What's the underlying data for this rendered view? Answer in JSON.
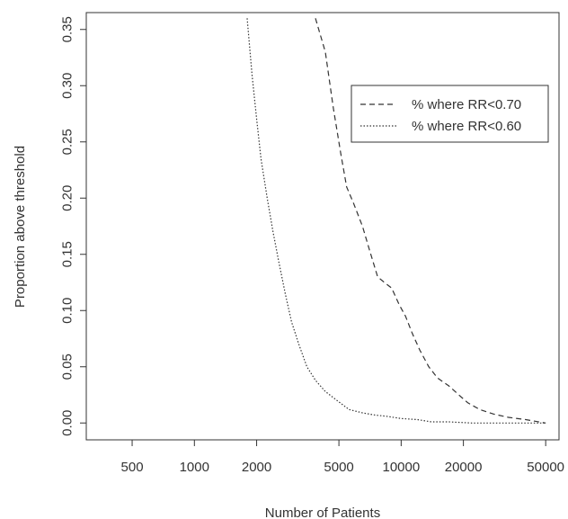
{
  "chart_data": {
    "type": "line",
    "title": "",
    "xlabel": "Number of Patients",
    "ylabel": "Proportion above threshold",
    "xscale": "log",
    "xlim": [
      300,
      58000
    ],
    "ylim": [
      -0.015,
      0.365
    ],
    "grid": false,
    "legend_position": "top-right",
    "x_ticks": [
      {
        "value": 500,
        "label": "500"
      },
      {
        "value": 1000,
        "label": "1000"
      },
      {
        "value": 2000,
        "label": "2000"
      },
      {
        "value": 5000,
        "label": "5000"
      },
      {
        "value": 10000,
        "label": "10000"
      },
      {
        "value": 20000,
        "label": "20000"
      },
      {
        "value": 50000,
        "label": "50000"
      }
    ],
    "y_ticks": [
      {
        "value": 0.0,
        "label": "0.00"
      },
      {
        "value": 0.05,
        "label": "0.05"
      },
      {
        "value": 0.1,
        "label": "0.10"
      },
      {
        "value": 0.15,
        "label": "0.15"
      },
      {
        "value": 0.2,
        "label": "0.20"
      },
      {
        "value": 0.25,
        "label": "0.25"
      },
      {
        "value": 0.3,
        "label": "0.30"
      },
      {
        "value": 0.35,
        "label": "0.35"
      }
    ],
    "series": [
      {
        "name": "% where RR<0.70",
        "dash": "dashed",
        "color": "#333333",
        "points": [
          [
            3850,
            0.36
          ],
          [
            4300,
            0.33
          ],
          [
            4700,
            0.28
          ],
          [
            5100,
            0.24
          ],
          [
            5450,
            0.21
          ],
          [
            5900,
            0.195
          ],
          [
            6500,
            0.175
          ],
          [
            7000,
            0.155
          ],
          [
            7700,
            0.13
          ],
          [
            8300,
            0.125
          ],
          [
            9000,
            0.12
          ],
          [
            9800,
            0.105
          ],
          [
            10500,
            0.095
          ],
          [
            11300,
            0.08
          ],
          [
            12300,
            0.065
          ],
          [
            13600,
            0.05
          ],
          [
            15000,
            0.04
          ],
          [
            17000,
            0.033
          ],
          [
            19000,
            0.025
          ],
          [
            21000,
            0.018
          ],
          [
            24000,
            0.012
          ],
          [
            28000,
            0.008
          ],
          [
            33000,
            0.005
          ],
          [
            40000,
            0.003
          ],
          [
            50000,
            0.0
          ]
        ]
      },
      {
        "name": "% where RR<0.60",
        "dash": "dotted",
        "color": "#333333",
        "points": [
          [
            1800,
            0.36
          ],
          [
            1900,
            0.31
          ],
          [
            2000,
            0.27
          ],
          [
            2100,
            0.235
          ],
          [
            2250,
            0.2
          ],
          [
            2400,
            0.17
          ],
          [
            2550,
            0.145
          ],
          [
            2750,
            0.115
          ],
          [
            2950,
            0.09
          ],
          [
            3200,
            0.07
          ],
          [
            3500,
            0.05
          ],
          [
            3850,
            0.038
          ],
          [
            4300,
            0.028
          ],
          [
            4900,
            0.02
          ],
          [
            5600,
            0.012
          ],
          [
            6500,
            0.009
          ],
          [
            7500,
            0.007
          ],
          [
            8500,
            0.006
          ],
          [
            10000,
            0.004
          ],
          [
            12000,
            0.003
          ],
          [
            14000,
            0.001
          ],
          [
            17000,
            0.001
          ],
          [
            22000,
            0.0
          ],
          [
            30000,
            0.0
          ],
          [
            40000,
            0.0
          ],
          [
            50000,
            0.0
          ]
        ]
      }
    ]
  }
}
